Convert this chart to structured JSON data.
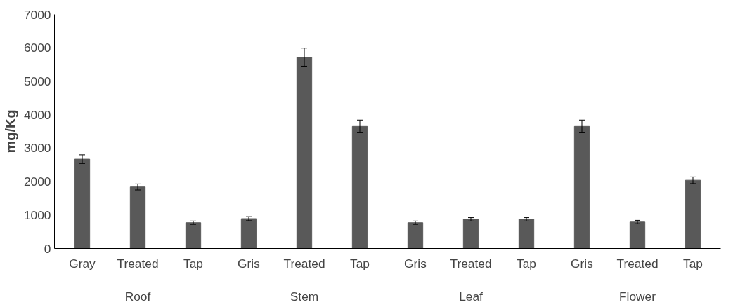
{
  "chart_data": {
    "type": "bar",
    "ylabel": "mg/Kg",
    "categories": [
      "Gray",
      "Treated",
      "Tap",
      "Gris",
      "Treated",
      "Tap",
      "Gris",
      "Treated",
      "Tap",
      "Gris",
      "Treated",
      "Tap"
    ],
    "annotations": [
      "Roof",
      "Stem",
      "Leaf",
      "Flower"
    ],
    "values": [
      2670,
      1840,
      770,
      890,
      5720,
      3650,
      770,
      870,
      870,
      3650,
      790,
      2040
    ],
    "errors": [
      130,
      90,
      50,
      60,
      270,
      190,
      50,
      50,
      50,
      190,
      50,
      100
    ],
    "color": "#595959",
    "ylim": [
      0,
      7000
    ],
    "yticks": [
      0,
      1000,
      2000,
      3000,
      4000,
      5000,
      6000,
      7000
    ],
    "grid": false
  }
}
